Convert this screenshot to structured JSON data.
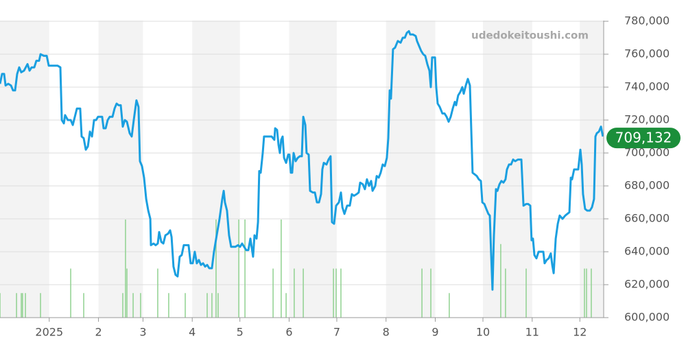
{
  "chart_data": {
    "type": "line",
    "watermark": "udedokeitoushi.com",
    "xlim": [
      0,
      380
    ],
    "xticks": [
      {
        "value": 31,
        "label": "2025"
      },
      {
        "value": 62,
        "label": "2"
      },
      {
        "value": 90,
        "label": "3"
      },
      {
        "value": 121,
        "label": "4"
      },
      {
        "value": 151,
        "label": "5"
      },
      {
        "value": 182,
        "label": "6"
      },
      {
        "value": 212,
        "label": "7"
      },
      {
        "value": 243,
        "label": "8"
      },
      {
        "value": 274,
        "label": "9"
      },
      {
        "value": 304,
        "label": "10"
      },
      {
        "value": 335,
        "label": "11"
      },
      {
        "value": 365,
        "label": "12"
      }
    ],
    "ylim": [
      600000,
      780000
    ],
    "yticks": [
      {
        "value": 600000,
        "label": "600,000"
      },
      {
        "value": 620000,
        "label": "620,000"
      },
      {
        "value": 640000,
        "label": "640,000"
      },
      {
        "value": 660000,
        "label": "660,000"
      },
      {
        "value": 680000,
        "label": "680,000"
      },
      {
        "value": 700000,
        "label": "700,000"
      },
      {
        "value": 720000,
        "label": "720,000"
      },
      {
        "value": 740000,
        "label": "740,000"
      },
      {
        "value": 760000,
        "label": "760,000"
      },
      {
        "value": 780000,
        "label": "780,000"
      }
    ],
    "grid": true,
    "band_color": "#f3f3f3",
    "series": [
      {
        "color": "#1a9fe0",
        "x": [
          0,
          1.3,
          2.6,
          3.5,
          5.2,
          6.9,
          8.2,
          9.5,
          10.8,
          12.1,
          13.4,
          15.1,
          17.3,
          18.6,
          19.9,
          21.6,
          22.9,
          24.6,
          25.5,
          27.6,
          29.4,
          30.7,
          33.7,
          36.3,
          38.0,
          38.9,
          40.2,
          41.0,
          42.7,
          44.5,
          45.8,
          47.1,
          48.4,
          50.5,
          51.4,
          52.7,
          54.0,
          55.3,
          56.6,
          57.9,
          59.2,
          60.5,
          61.7,
          64.3,
          65.2,
          66.5,
          67.8,
          69.1,
          70.8,
          72.1,
          73.4,
          74.7,
          76.0,
          77.3,
          78.6,
          79.9,
          81.6,
          82.9,
          84.2,
          85.9,
          87.2,
          88.1,
          89.4,
          90.7,
          92.0,
          93.3,
          94.6,
          95.0,
          96.7,
          98.0,
          99.3,
          100.2,
          101.5,
          102.8,
          104.1,
          105.8,
          107.1,
          108.0,
          109.2,
          110.5,
          111.8,
          113.1,
          114.4,
          115.7,
          117.0,
          118.7,
          120.0,
          121.3,
          122.6,
          123.9,
          125.2,
          126.5,
          127.8,
          129.1,
          130.4,
          131.7,
          133.4,
          134.7,
          136.4,
          138.2,
          139.9,
          140.8,
          141.6,
          142.9,
          144.2,
          145.5,
          146.8,
          148.1,
          149.8,
          151.1,
          152.4,
          153.7,
          155.0,
          156.3,
          157.6,
          159.3,
          160.2,
          161.5,
          162.4,
          163.2,
          164.1,
          165.4,
          166.2,
          168.4,
          171.0,
          172.7,
          173.2,
          174.4,
          175.3,
          176.2,
          177.0,
          177.9,
          178.8,
          180.1,
          181.4,
          182.2,
          183.1,
          183.9,
          184.8,
          186.1,
          187.4,
          188.7,
          190.0,
          190.9,
          192.2,
          193.0,
          194.3,
          195.2,
          196.9,
          198.2,
          199.5,
          200.8,
          202.1,
          202.9,
          203.8,
          205.5,
          206.8,
          208.1,
          209.0,
          210.3,
          211.6,
          213.3,
          214.6,
          215.5,
          216.8,
          218.5,
          220.2,
          221.5,
          222.8,
          224.5,
          225.8,
          226.7,
          228.4,
          229.7,
          231.0,
          232.3,
          233.6,
          234.5,
          236.2,
          237.1,
          238.4,
          239.6,
          240.9,
          242.2,
          243.5,
          244.4,
          245.3,
          246.1,
          247.4,
          248.7,
          250.4,
          252.2,
          253.5,
          254.8,
          256.1,
          257.4,
          258.2,
          259.9,
          261.7,
          262.5,
          263.8,
          265.1,
          266.4,
          267.7,
          269.0,
          270.3,
          271.2,
          272.0,
          273.8,
          274.6,
          275.5,
          276.8,
          278.5,
          279.8,
          281.1,
          282.4,
          283.7,
          285.0,
          286.3,
          287.1,
          288.4,
          289.7,
          291.0,
          291.9,
          293.2,
          294.5,
          295.8,
          296.6,
          297.5,
          298.8,
          300.1,
          301.4,
          302.7,
          303.6,
          304.9,
          306.1,
          307.4,
          308.3,
          309.2,
          310.0,
          310.9,
          312.2,
          313.1,
          314.4,
          315.6,
          316.9,
          318.2,
          319.1,
          320.4,
          321.7,
          323.0,
          324.3,
          326.0,
          328.2,
          329.5,
          331.2,
          332.5,
          333.8,
          334.6,
          335.5,
          336.4,
          337.7,
          339.0,
          340.7,
          342.0,
          342.8,
          344.1,
          345.4,
          346.7,
          347.6,
          348.5,
          349.8,
          351.1,
          352.3,
          354.1,
          355.8,
          357.1,
          358.4,
          359.3,
          360.1,
          361.4,
          362.7,
          364.0,
          365.3,
          366.2,
          367.0,
          368.3,
          369.6,
          371.3,
          372.6,
          373.9,
          374.8,
          375.7,
          377.0,
          378.3,
          379.5
        ],
        "values": [
          742000,
          748000,
          748000,
          741000,
          742000,
          741000,
          738000,
          738000,
          748000,
          752000,
          749000,
          750000,
          754000,
          750000,
          752000,
          752000,
          756000,
          756000,
          760000,
          759000,
          759000,
          753000,
          753000,
          753000,
          752000,
          720000,
          718000,
          723000,
          720000,
          720000,
          717000,
          722000,
          727000,
          727000,
          710000,
          709000,
          702000,
          704000,
          713000,
          710000,
          720000,
          720000,
          722000,
          722000,
          715000,
          715000,
          720000,
          722000,
          722000,
          727000,
          730000,
          729000,
          729000,
          716000,
          720000,
          719000,
          712000,
          710000,
          720000,
          732000,
          728000,
          695000,
          692000,
          685000,
          672000,
          665000,
          660000,
          644000,
          645000,
          644000,
          645000,
          652000,
          646000,
          645000,
          650000,
          651000,
          653000,
          649000,
          631000,
          626000,
          625000,
          637000,
          638000,
          644000,
          644000,
          644000,
          633000,
          633000,
          640000,
          633000,
          635000,
          632000,
          633000,
          631000,
          632000,
          630000,
          630000,
          640000,
          650000,
          660000,
          672000,
          677000,
          670000,
          665000,
          650000,
          643000,
          643000,
          643000,
          644000,
          643000,
          645000,
          643000,
          641000,
          641000,
          648000,
          637000,
          650000,
          648000,
          658000,
          689000,
          688000,
          700000,
          710000,
          710000,
          710000,
          708000,
          715000,
          714000,
          705000,
          700000,
          708000,
          710000,
          697000,
          694000,
          699000,
          699000,
          688000,
          688000,
          700000,
          695000,
          697000,
          698000,
          698000,
          722000,
          717000,
          700000,
          699000,
          677000,
          676000,
          676000,
          670000,
          670000,
          675000,
          690000,
          694000,
          693000,
          696000,
          698000,
          658000,
          657000,
          668000,
          670000,
          676000,
          667000,
          663000,
          668000,
          668000,
          675000,
          674000,
          675000,
          676000,
          682000,
          681000,
          678000,
          684000,
          680000,
          683000,
          677000,
          680000,
          686000,
          685000,
          688000,
          693000,
          692000,
          697000,
          709000,
          738000,
          733000,
          763000,
          764000,
          768000,
          767000,
          770000,
          770000,
          773000,
          774000,
          772000,
          772000,
          771000,
          768000,
          765000,
          762000,
          760000,
          759000,
          754000,
          750000,
          740000,
          758000,
          758000,
          740000,
          730000,
          728000,
          724000,
          724000,
          722000,
          719000,
          722000,
          727000,
          731000,
          729000,
          735000,
          737000,
          740000,
          736000,
          741000,
          745000,
          741000,
          715000,
          688000,
          687000,
          686000,
          684000,
          683000,
          670000,
          669000,
          666000,
          663000,
          662000,
          638000,
          617000,
          650000,
          678000,
          677000,
          681000,
          683000,
          682000,
          684000,
          690000,
          693000,
          693000,
          696000,
          695000,
          696000,
          696000,
          668000,
          669000,
          669000,
          668000,
          647000,
          648000,
          638000,
          636000,
          640000,
          640000,
          640000,
          633000,
          635000,
          636000,
          639000,
          632000,
          627000,
          648000,
          657000,
          662000,
          660000,
          662000,
          663000,
          664000,
          685000,
          684000,
          690000,
          690000,
          690000,
          702000,
          693000,
          675000,
          666000,
          665000,
          665000,
          667000,
          672000,
          710000,
          712000,
          713000,
          716000,
          710000
        ]
      }
    ],
    "volume": {
      "color": "#8fd18f",
      "x": [
        0,
        10.4,
        13.4,
        14.2,
        16.0,
        25.5,
        44.5,
        52.7,
        77.3,
        79.0,
        79.9,
        83.8,
        88.5,
        99.3,
        106.2,
        116.6,
        130.4,
        133.4,
        136.0,
        137.3,
        150.3,
        154.2,
        171.9,
        177.0,
        180.1,
        185.2,
        190.9,
        209.9,
        211.6,
        214.6,
        265.6,
        271.2,
        282.8,
        315.2,
        318.2,
        331.2,
        367.9,
        369.2,
        372.2
      ],
      "values": [
        1,
        1,
        1,
        1,
        1,
        1,
        2,
        1,
        1,
        4,
        2,
        1,
        1,
        2,
        1,
        1,
        1,
        1,
        4,
        1,
        4,
        4,
        2,
        4,
        1,
        2,
        2,
        2,
        2,
        2,
        2,
        2,
        1,
        3,
        2,
        2,
        2,
        2,
        2
      ]
    },
    "last_price": {
      "value": 709132,
      "label": "709,132",
      "color": "#1b8e3a"
    }
  }
}
